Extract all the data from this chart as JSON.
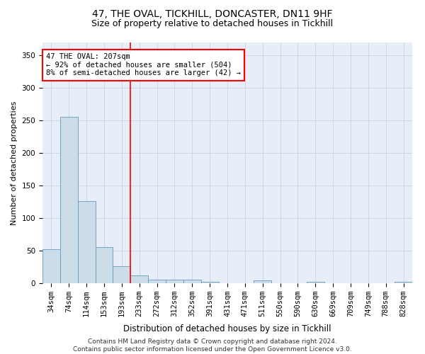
{
  "title1": "47, THE OVAL, TICKHILL, DONCASTER, DN11 9HF",
  "title2": "Size of property relative to detached houses in Tickhill",
  "xlabel": "Distribution of detached houses by size in Tickhill",
  "ylabel": "Number of detached properties",
  "categories": [
    "34sqm",
    "74sqm",
    "114sqm",
    "153sqm",
    "193sqm",
    "233sqm",
    "272sqm",
    "312sqm",
    "352sqm",
    "391sqm",
    "431sqm",
    "471sqm",
    "511sqm",
    "550sqm",
    "590sqm",
    "630sqm",
    "669sqm",
    "709sqm",
    "749sqm",
    "788sqm",
    "828sqm"
  ],
  "values": [
    52,
    256,
    126,
    56,
    26,
    12,
    5,
    5,
    5,
    2,
    0,
    0,
    4,
    0,
    0,
    2,
    0,
    0,
    0,
    0,
    2
  ],
  "bar_color": "#ccdce8",
  "bar_edge_color": "#6699bb",
  "grid_color": "#ccd8e8",
  "background_color": "#e8eef8",
  "annotation_text": "47 THE OVAL: 207sqm\n← 92% of detached houses are smaller (504)\n8% of semi-detached houses are larger (42) →",
  "annotation_box_color": "white",
  "annotation_box_edge": "red",
  "vline_x_index": 4.5,
  "vline_color": "red",
  "yticks": [
    0,
    50,
    100,
    150,
    200,
    250,
    300,
    350
  ],
  "ylim_max": 370,
  "footer": "Contains HM Land Registry data © Crown copyright and database right 2024.\nContains public sector information licensed under the Open Government Licence v3.0.",
  "title1_fontsize": 10,
  "title2_fontsize": 9,
  "xlabel_fontsize": 8.5,
  "ylabel_fontsize": 8,
  "tick_fontsize": 7.5,
  "annot_fontsize": 7.5,
  "footer_fontsize": 6.5
}
